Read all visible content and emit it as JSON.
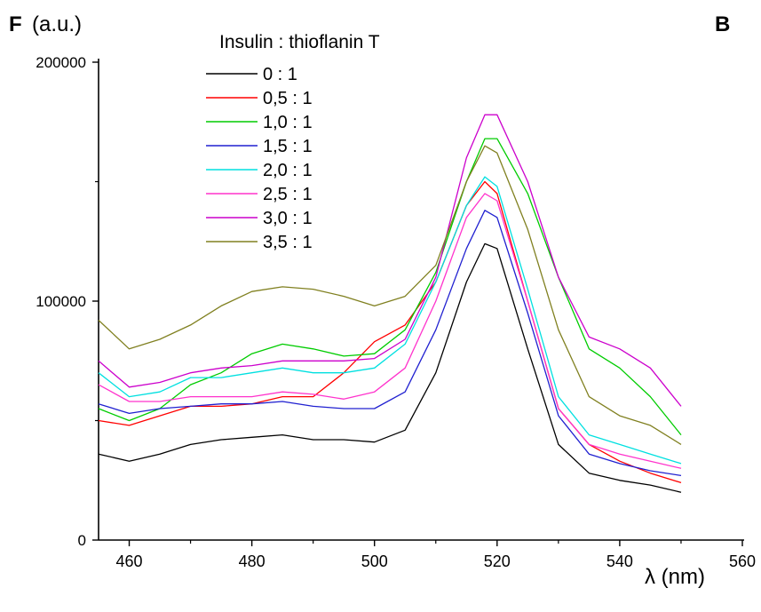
{
  "chart_data": {
    "type": "line",
    "panel_label": "B",
    "ylabel_bold": "F",
    "ylabel_rest": " (a.u.)",
    "xlabel": "λ (nm)",
    "xlim": [
      455,
      560
    ],
    "ylim": [
      0,
      200000
    ],
    "x_ticks": [
      460,
      480,
      500,
      520,
      540,
      560
    ],
    "y_ticks": [
      0,
      100000,
      200000
    ],
    "legend_title": "Insulin : thioflanin T",
    "legend_position": "top-left",
    "grid": false,
    "x": [
      455,
      460,
      465,
      470,
      475,
      480,
      485,
      490,
      495,
      500,
      505,
      510,
      515,
      518,
      520,
      525,
      530,
      535,
      540,
      545,
      550
    ],
    "series": [
      {
        "name": "0 : 1",
        "color": "#000000",
        "values": [
          36000,
          33000,
          36000,
          40000,
          42000,
          43000,
          44000,
          42000,
          42000,
          41000,
          46000,
          70000,
          108000,
          124000,
          122000,
          80000,
          40000,
          28000,
          25000,
          23000,
          20000
        ]
      },
      {
        "name": "0,5 : 1",
        "color": "#ff0000",
        "values": [
          50000,
          48000,
          52000,
          56000,
          56000,
          57000,
          60000,
          60000,
          70000,
          83000,
          90000,
          108000,
          140000,
          150000,
          145000,
          100000,
          55000,
          40000,
          33000,
          28000,
          24000
        ]
      },
      {
        "name": "1,0 : 1",
        "color": "#00cc00",
        "values": [
          55000,
          50000,
          55000,
          65000,
          70000,
          78000,
          82000,
          80000,
          77000,
          78000,
          88000,
          112000,
          150000,
          168000,
          168000,
          145000,
          110000,
          80000,
          72000,
          60000,
          44000
        ]
      },
      {
        "name": "1,5 : 1",
        "color": "#2020d0",
        "values": [
          57000,
          53000,
          55000,
          56000,
          57000,
          57000,
          58000,
          56000,
          55000,
          55000,
          62000,
          88000,
          122000,
          138000,
          135000,
          95000,
          52000,
          36000,
          32000,
          29000,
          27000
        ]
      },
      {
        "name": "2,0 : 1",
        "color": "#00e0e0",
        "values": [
          70000,
          60000,
          62000,
          68000,
          68000,
          70000,
          72000,
          70000,
          70000,
          72000,
          82000,
          108000,
          140000,
          152000,
          148000,
          105000,
          60000,
          44000,
          40000,
          36000,
          32000
        ]
      },
      {
        "name": "2,5 : 1",
        "color": "#ff33cc",
        "values": [
          65000,
          58000,
          58000,
          60000,
          60000,
          60000,
          62000,
          61000,
          59000,
          62000,
          72000,
          100000,
          135000,
          145000,
          142000,
          100000,
          55000,
          40000,
          36000,
          33000,
          30000
        ]
      },
      {
        "name": "3,0 : 1",
        "color": "#cc00cc",
        "values": [
          75000,
          64000,
          66000,
          70000,
          72000,
          73000,
          75000,
          75000,
          75000,
          76000,
          84000,
          110000,
          160000,
          178000,
          178000,
          150000,
          110000,
          85000,
          80000,
          72000,
          56000
        ]
      },
      {
        "name": "3,5 : 1",
        "color": "#808020",
        "values": [
          92000,
          80000,
          84000,
          90000,
          98000,
          104000,
          106000,
          105000,
          102000,
          98000,
          102000,
          115000,
          150000,
          165000,
          162000,
          130000,
          88000,
          60000,
          52000,
          48000,
          40000
        ]
      }
    ]
  }
}
